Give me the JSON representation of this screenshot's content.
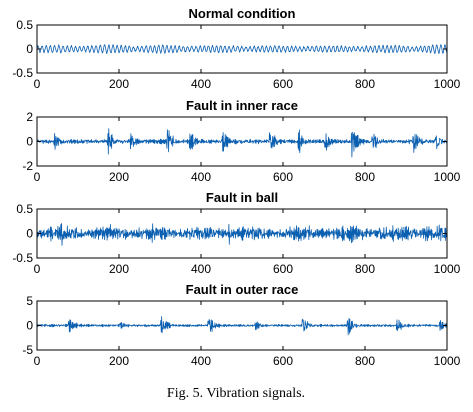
{
  "figure": {
    "caption": "Fig. 5. Vibration signals.",
    "signal_color": "#0b5fb0"
  },
  "chart_data": [
    {
      "type": "line",
      "title": "Normal condition",
      "xlabel": "",
      "ylabel": "",
      "xlim": [
        0,
        1000
      ],
      "ylim": [
        -0.5,
        0.5
      ],
      "xticks": [
        0,
        200,
        400,
        600,
        800,
        1000
      ],
      "yticks": [
        0.5,
        0,
        -0.5
      ],
      "grid": false,
      "series": [
        {
          "style": "narrowband-oscillation",
          "samples": 1000,
          "amplitude": 0.15,
          "bursts": []
        }
      ]
    },
    {
      "type": "line",
      "title": "Fault in inner race",
      "xlabel": "",
      "ylabel": "",
      "xlim": [
        0,
        1000
      ],
      "ylim": [
        -2,
        2
      ],
      "xticks": [
        0,
        200,
        400,
        600,
        800,
        1000
      ],
      "yticks": [
        2,
        0,
        -2
      ],
      "grid": false,
      "series": [
        {
          "style": "noise-with-impulses",
          "samples": 1000,
          "amplitude": 0.25,
          "bursts": [
            {
              "x": 45,
              "peak": 0.8
            },
            {
              "x": 175,
              "peak": 1.1
            },
            {
              "x": 230,
              "peak": 0.7
            },
            {
              "x": 320,
              "peak": 1.4
            },
            {
              "x": 375,
              "peak": 0.8
            },
            {
              "x": 455,
              "peak": 1.1
            },
            {
              "x": 570,
              "peak": 1.2
            },
            {
              "x": 640,
              "peak": 0.9
            },
            {
              "x": 705,
              "peak": 0.8
            },
            {
              "x": 770,
              "peak": 1.5
            },
            {
              "x": 820,
              "peak": 0.9
            },
            {
              "x": 920,
              "peak": 1.3
            },
            {
              "x": 975,
              "peak": 0.9
            }
          ]
        }
      ]
    },
    {
      "type": "line",
      "title": "Fault in ball",
      "xlabel": "",
      "ylabel": "",
      "xlim": [
        0,
        1000
      ],
      "ylim": [
        -0.5,
        0.5
      ],
      "xticks": [
        0,
        200,
        400,
        600,
        800,
        1000
      ],
      "yticks": [
        0.5,
        0,
        -0.5
      ],
      "grid": false,
      "series": [
        {
          "style": "dense-noise",
          "samples": 1000,
          "amplitude": 0.22,
          "bursts": [
            {
              "x": 60,
              "peak": 0.4
            },
            {
              "x": 180,
              "peak": 0.3
            },
            {
              "x": 470,
              "peak": 0.3
            },
            {
              "x": 620,
              "peak": 0.3
            },
            {
              "x": 770,
              "peak": 0.45
            },
            {
              "x": 850,
              "peak": 0.32
            },
            {
              "x": 950,
              "peak": 0.3
            }
          ]
        }
      ]
    },
    {
      "type": "line",
      "title": "Fault in outer race",
      "xlabel": "",
      "ylabel": "",
      "xlim": [
        0,
        1000
      ],
      "ylim": [
        -5,
        5
      ],
      "xticks": [
        0,
        200,
        400,
        600,
        800,
        1000
      ],
      "yticks": [
        5,
        0,
        -5
      ],
      "grid": false,
      "series": [
        {
          "style": "noise-with-impulses",
          "samples": 1000,
          "amplitude": 0.35,
          "bursts": [
            {
              "x": 80,
              "peak": 2.0
            },
            {
              "x": 205,
              "peak": 1.0
            },
            {
              "x": 305,
              "peak": 2.6
            },
            {
              "x": 420,
              "peak": 2.4
            },
            {
              "x": 535,
              "peak": 1.1
            },
            {
              "x": 650,
              "peak": 2.6
            },
            {
              "x": 760,
              "peak": 2.8
            },
            {
              "x": 880,
              "peak": 1.8
            },
            {
              "x": 985,
              "peak": 1.2
            }
          ]
        }
      ]
    }
  ]
}
